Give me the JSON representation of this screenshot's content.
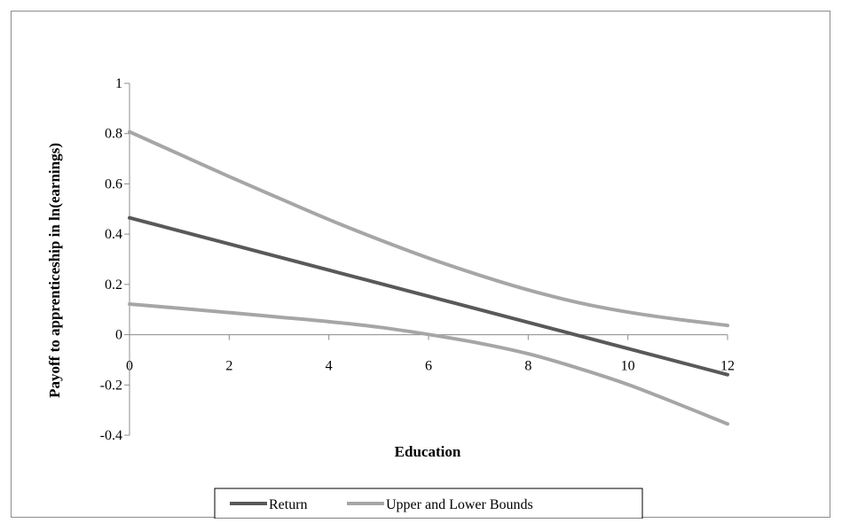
{
  "chart_data": {
    "type": "line",
    "title": "",
    "xlabel": "Education",
    "ylabel": "Payoff to apprenticeship in ln(earnings)",
    "xlim": [
      0,
      12
    ],
    "ylim": [
      -0.4,
      1
    ],
    "x_ticks": [
      "0",
      "2",
      "4",
      "6",
      "8",
      "10",
      "12"
    ],
    "y_ticks": [
      "-0.4",
      "-0.2",
      "0",
      "0.2",
      "0.4",
      "0.6",
      "0.8",
      "1"
    ],
    "grid": false,
    "legend_position": "bottom",
    "x": [
      0,
      1,
      2,
      3,
      4,
      5,
      6,
      7,
      8,
      9,
      10,
      11,
      12
    ],
    "series": [
      {
        "name": "Return",
        "color": "#595959",
        "values": [
          0.465,
          0.413,
          0.361,
          0.309,
          0.257,
          0.205,
          0.153,
          0.101,
          0.049,
          -0.003,
          -0.055,
          -0.107,
          -0.159
        ]
      },
      {
        "name": "Upper and Lower Bounds",
        "role": "upper",
        "color": "#a6a6a6",
        "values": [
          0.807,
          0.718,
          0.629,
          0.543,
          0.458,
          0.379,
          0.305,
          0.238,
          0.178,
          0.128,
          0.09,
          0.061,
          0.037
        ]
      },
      {
        "name": "",
        "role": "lower",
        "color": "#a6a6a6",
        "values": [
          0.122,
          0.105,
          0.088,
          0.07,
          0.052,
          0.03,
          0.001,
          -0.033,
          -0.076,
          -0.133,
          -0.198,
          -0.275,
          -0.355
        ]
      }
    ],
    "legend": [
      {
        "label": "Return",
        "color": "#595959"
      },
      {
        "label": "Upper and Lower Bounds",
        "color": "#a6a6a6"
      }
    ]
  }
}
